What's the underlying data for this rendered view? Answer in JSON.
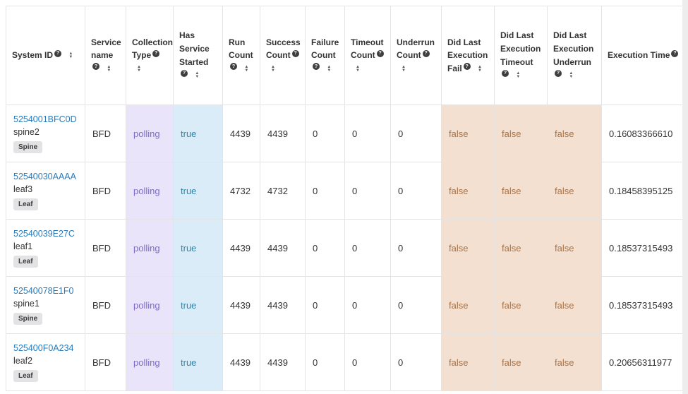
{
  "icons": {
    "help": "?",
    "sort_asc": "▲",
    "sort_desc": "▼"
  },
  "colors": {
    "link_blue": "#2a7ab9",
    "collection_type_bg": "#e9e4f9",
    "collection_type_text": "#7e6bca",
    "has_started_bg": "#d9ecf7",
    "has_started_text": "#2e87b0",
    "did_last_bg": "#f3e0d0",
    "did_last_text": "#aa7244",
    "badge_bg": "#e3e3e5",
    "border": "#e4e4e4"
  },
  "table": {
    "columns": [
      {
        "id": "system_id",
        "label": "System ID"
      },
      {
        "id": "service_name",
        "label": "Service name"
      },
      {
        "id": "collection_type",
        "label": "Collection Type"
      },
      {
        "id": "has_service_started",
        "label": "Has Service Started"
      },
      {
        "id": "run_count",
        "label": "Run Count"
      },
      {
        "id": "success_count",
        "label": "Success Count"
      },
      {
        "id": "failure_count",
        "label": "Failure Count"
      },
      {
        "id": "timeout_count",
        "label": "Timeout Count"
      },
      {
        "id": "underrun_count",
        "label": "Underrun Count"
      },
      {
        "id": "did_last_execution_fail",
        "label": "Did Last Execution Fail"
      },
      {
        "id": "did_last_execution_timeout",
        "label": "Did Last Execution Timeout"
      },
      {
        "id": "did_last_execution_underrun",
        "label": "Did Last Execution Underrun"
      },
      {
        "id": "execution_time",
        "label": "Execution Time"
      }
    ],
    "rows": [
      {
        "system_id": "5254001BFC0D",
        "hostname": "spine2",
        "role": "Spine",
        "service_name": "BFD",
        "collection_type": "polling",
        "has_service_started": "true",
        "run_count": "4439",
        "success_count": "4439",
        "failure_count": "0",
        "timeout_count": "0",
        "underrun_count": "0",
        "did_last_execution_fail": "false",
        "did_last_execution_timeout": "false",
        "did_last_execution_underrun": "false",
        "execution_time": "0.16083366610"
      },
      {
        "system_id": "52540030AAAA",
        "hostname": "leaf3",
        "role": "Leaf",
        "service_name": "BFD",
        "collection_type": "polling",
        "has_service_started": "true",
        "run_count": "4732",
        "success_count": "4732",
        "failure_count": "0",
        "timeout_count": "0",
        "underrun_count": "0",
        "did_last_execution_fail": "false",
        "did_last_execution_timeout": "false",
        "did_last_execution_underrun": "false",
        "execution_time": "0.18458395125"
      },
      {
        "system_id": "52540039E27C",
        "hostname": "leaf1",
        "role": "Leaf",
        "service_name": "BFD",
        "collection_type": "polling",
        "has_service_started": "true",
        "run_count": "4439",
        "success_count": "4439",
        "failure_count": "0",
        "timeout_count": "0",
        "underrun_count": "0",
        "did_last_execution_fail": "false",
        "did_last_execution_timeout": "false",
        "did_last_execution_underrun": "false",
        "execution_time": "0.18537315493"
      },
      {
        "system_id": "52540078E1F0",
        "hostname": "spine1",
        "role": "Spine",
        "service_name": "BFD",
        "collection_type": "polling",
        "has_service_started": "true",
        "run_count": "4439",
        "success_count": "4439",
        "failure_count": "0",
        "timeout_count": "0",
        "underrun_count": "0",
        "did_last_execution_fail": "false",
        "did_last_execution_timeout": "false",
        "did_last_execution_underrun": "false",
        "execution_time": "0.18537315493"
      },
      {
        "system_id": "525400F0A234",
        "hostname": "leaf2",
        "role": "Leaf",
        "service_name": "BFD",
        "collection_type": "polling",
        "has_service_started": "true",
        "run_count": "4439",
        "success_count": "4439",
        "failure_count": "0",
        "timeout_count": "0",
        "underrun_count": "0",
        "did_last_execution_fail": "false",
        "did_last_execution_timeout": "false",
        "did_last_execution_underrun": "false",
        "execution_time": "0.20656311977"
      }
    ]
  }
}
